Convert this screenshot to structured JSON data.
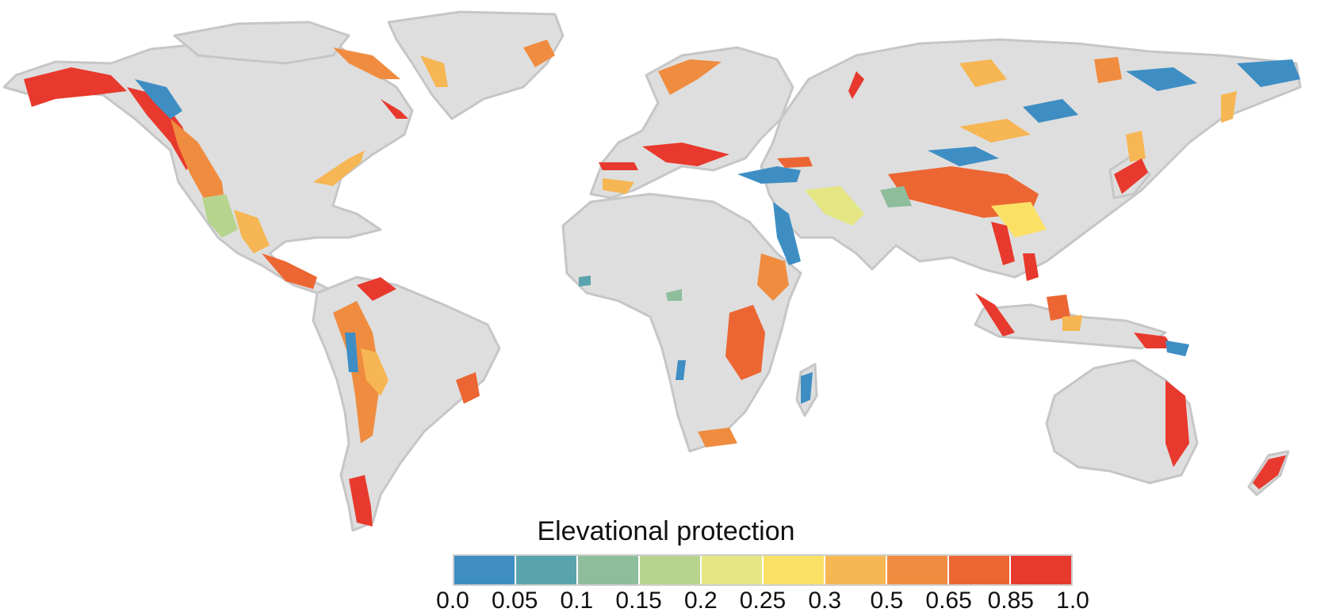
{
  "map": {
    "land_color": "#dedede",
    "border_color": "#c6c6c6",
    "ocean_color": "#ffffff"
  },
  "legend": {
    "title": "Elevational protection",
    "ticks": [
      "0.0",
      "0.05",
      "0.1",
      "0.15",
      "0.2",
      "0.25",
      "0.3",
      "0.5",
      "0.65",
      "0.85",
      "1.0"
    ],
    "colors": [
      "#3e8ec4",
      "#59a3ad",
      "#8ebd9c",
      "#b7d48e",
      "#e3e683",
      "#fbe066",
      "#f6b653",
      "#f08c3f",
      "#ec6633",
      "#e8392e"
    ]
  }
}
